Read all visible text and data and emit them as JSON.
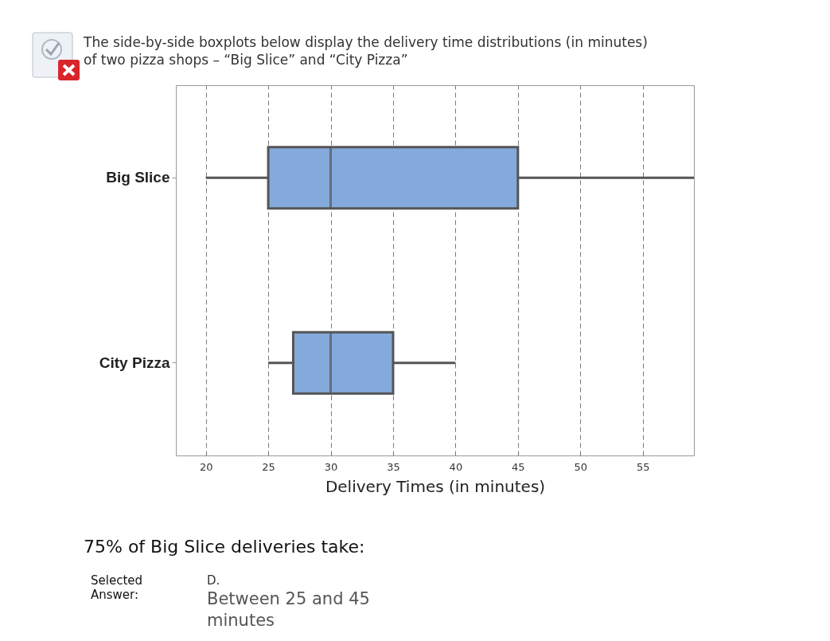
{
  "chart_data": {
    "type": "box",
    "title": "The side-by-side boxplots below display the delivery time distributions (in minutes) of two pizza shops – “Big Slice” and “City Pizza”",
    "xlabel": "Delivery Times (in minutes)",
    "orientation": "horizontal",
    "categories": [
      "Big Slice",
      "City Pizza"
    ],
    "boxes": [
      {
        "low": 20,
        "q1": 25,
        "median": 30,
        "q3": 45,
        "high": 59.1
      },
      {
        "low": 25,
        "q1": 27,
        "median": 30,
        "q3": 35,
        "high": 40
      }
    ],
    "xlim": [
      17.6,
      59.1
    ],
    "xticks": [
      20,
      25,
      30,
      35,
      40,
      45,
      50,
      55
    ],
    "grid": "x",
    "color": "#84aadb",
    "annotations": [
      "75% of Big Slice deliveries take:",
      "Selected Answer:",
      "D.",
      "Between 25 and 45 minutes"
    ]
  }
}
